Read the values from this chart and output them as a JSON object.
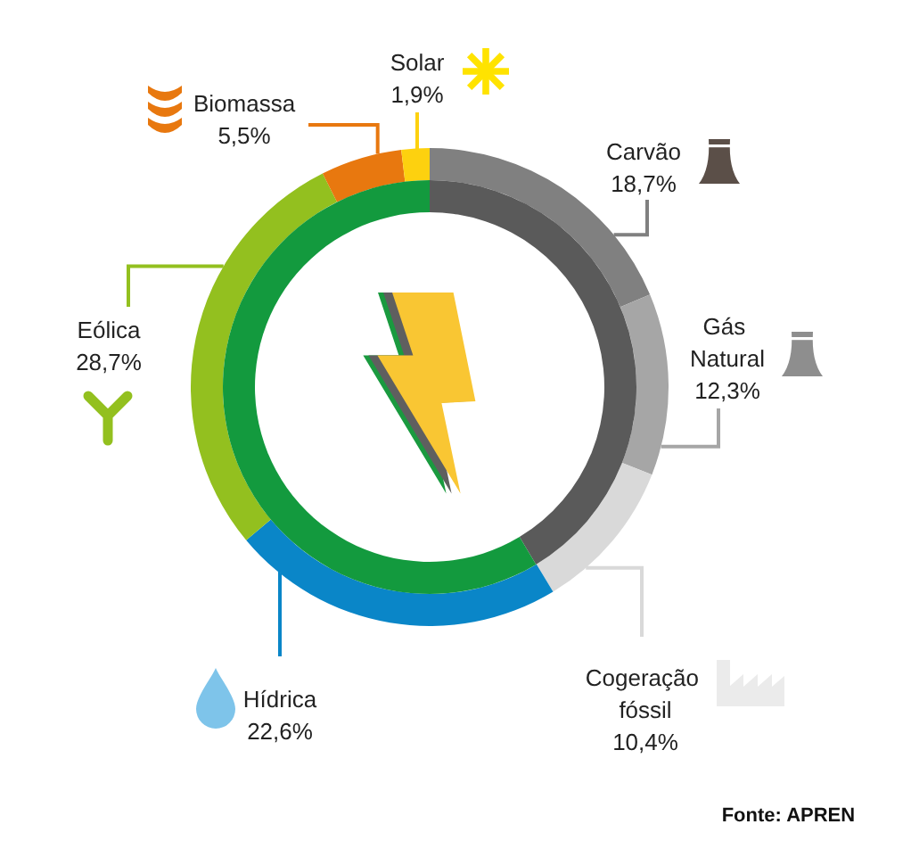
{
  "chart_data": [
    {
      "type": "donut",
      "categories": [
        "Carvão",
        "Gás Natural",
        "Cogeração fóssil",
        "Hídrica",
        "Eólica",
        "Biomassa",
        "Solar"
      ],
      "values": [
        18.7,
        12.3,
        10.4,
        22.6,
        28.7,
        5.5,
        1.9
      ],
      "colors": [
        "#808080",
        "#a6a6a6",
        "#d9d9d9",
        "#0a86c8",
        "#93c01f",
        "#e8780f",
        "#fdd10f"
      ],
      "value_labels": [
        "18,7%",
        "12,3%",
        "10,4%",
        "22,6%",
        "28,7%",
        "5,5%",
        "1,9%"
      ],
      "annotations": [
        "Fonte: APREN"
      ]
    },
    {
      "type": "donut",
      "categories": [
        null,
        null
      ],
      "values": [
        41.4,
        58.6
      ],
      "colors": [
        "#5a5a5a",
        "#139a3e"
      ]
    }
  ]
}
